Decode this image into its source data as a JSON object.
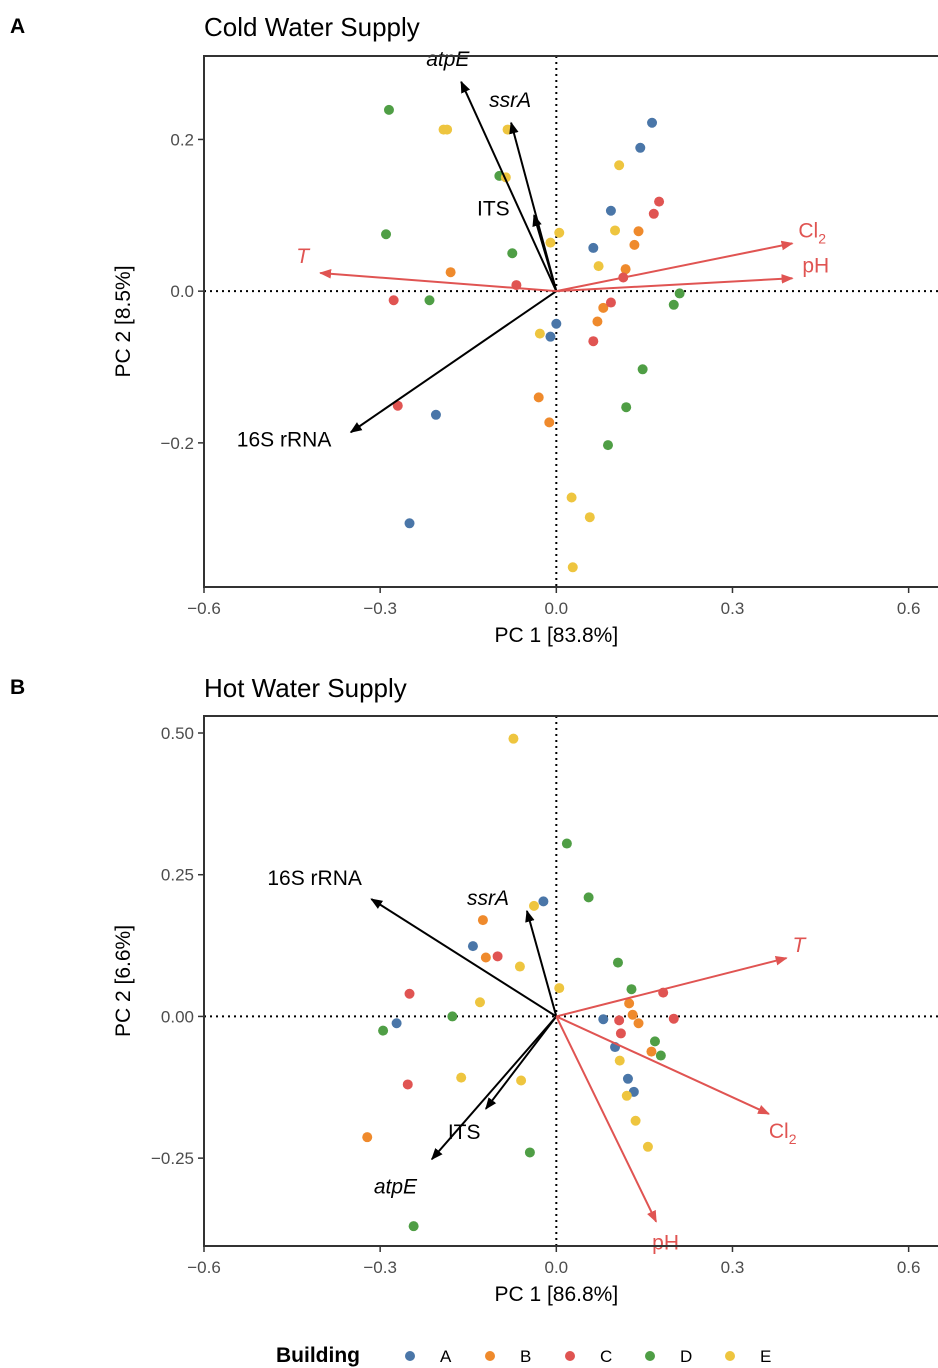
{
  "colors": {
    "A": "#4a76a8",
    "B": "#ef8a2c",
    "C": "#e05452",
    "D": "#4f9e45",
    "E": "#eec53f",
    "species_vector": "#000000",
    "env_vector": "#e05452"
  },
  "legend": {
    "title": "Building",
    "items": [
      {
        "key": "A",
        "label": "A"
      },
      {
        "key": "B",
        "label": "B"
      },
      {
        "key": "C",
        "label": "C"
      },
      {
        "key": "D",
        "label": "D"
      },
      {
        "key": "E",
        "label": "E"
      }
    ]
  },
  "chart_data": [
    {
      "type": "scatter",
      "panel": "A",
      "title": "Cold Water Supply",
      "xlabel": "PC 1 [83.8%]",
      "ylabel": "PC 2 [8.5%]",
      "xlim": [
        -0.6,
        0.65
      ],
      "ylim": [
        -0.39,
        0.31
      ],
      "xticks": [
        -0.6,
        -0.3,
        0.0,
        0.3,
        0.6
      ],
      "xtick_labels": [
        "−0.6",
        "−0.3",
        "0.0",
        "0.3",
        "0.6"
      ],
      "yticks": [
        -0.2,
        0.0,
        0.2
      ],
      "ytick_labels": [
        "−0.2",
        "0.0",
        "0.2"
      ],
      "reference_lines": {
        "x": 0,
        "y": 0,
        "style": "dotted"
      },
      "vectors": [
        {
          "label": "atpE",
          "italic": true,
          "kind": "species",
          "x": -0.162,
          "y": 0.276
        },
        {
          "label": "ssrA",
          "italic": true,
          "kind": "species",
          "x": -0.077,
          "y": 0.222
        },
        {
          "label": "ITS",
          "italic": false,
          "kind": "species",
          "x": -0.038,
          "y": 0.1
        },
        {
          "label": "16S rRNA",
          "italic": false,
          "kind": "species",
          "x": -0.35,
          "y": -0.186
        },
        {
          "label": "T",
          "italic": true,
          "kind": "environment",
          "x": -0.402,
          "y": 0.024
        },
        {
          "label": "Cl",
          "sub": "2",
          "italic": false,
          "kind": "environment",
          "x": 0.402,
          "y": 0.063
        },
        {
          "label": "pH",
          "italic": false,
          "kind": "environment",
          "x": 0.402,
          "y": 0.017
        }
      ],
      "series": [
        {
          "name": "A",
          "points": [
            [
              0.163,
              0.222
            ],
            [
              0.143,
              0.189
            ],
            [
              0.093,
              0.106
            ],
            [
              0.063,
              0.057
            ],
            [
              0.0,
              -0.043
            ],
            [
              -0.01,
              -0.06
            ],
            [
              -0.205,
              -0.163
            ],
            [
              -0.25,
              -0.306
            ]
          ]
        },
        {
          "name": "B",
          "points": [
            [
              0.14,
              0.079
            ],
            [
              0.133,
              0.061
            ],
            [
              0.118,
              0.029
            ],
            [
              0.08,
              -0.022
            ],
            [
              0.07,
              -0.04
            ],
            [
              -0.18,
              0.025
            ],
            [
              -0.03,
              -0.14
            ],
            [
              -0.012,
              -0.173
            ]
          ]
        },
        {
          "name": "C",
          "points": [
            [
              0.175,
              0.118
            ],
            [
              0.166,
              0.102
            ],
            [
              0.114,
              0.018
            ],
            [
              0.093,
              -0.015
            ],
            [
              0.063,
              -0.066
            ],
            [
              -0.27,
              -0.151
            ],
            [
              -0.277,
              -0.012
            ],
            [
              -0.068,
              0.008
            ]
          ]
        },
        {
          "name": "D",
          "points": [
            [
              -0.285,
              0.239
            ],
            [
              -0.097,
              0.152
            ],
            [
              -0.29,
              0.075
            ],
            [
              -0.075,
              0.05
            ],
            [
              -0.216,
              -0.012
            ],
            [
              0.21,
              -0.003
            ],
            [
              0.2,
              -0.018
            ],
            [
              0.147,
              -0.103
            ],
            [
              0.119,
              -0.153
            ],
            [
              0.088,
              -0.203
            ]
          ]
        },
        {
          "name": "E",
          "points": [
            [
              -0.192,
              0.213
            ],
            [
              -0.186,
              0.213
            ],
            [
              -0.083,
              0.213
            ],
            [
              -0.086,
              0.15
            ],
            [
              0.107,
              0.166
            ],
            [
              0.1,
              0.08
            ],
            [
              0.072,
              0.033
            ],
            [
              0.005,
              0.077
            ],
            [
              -0.01,
              0.064
            ],
            [
              -0.028,
              -0.056
            ],
            [
              0.026,
              -0.272
            ],
            [
              0.057,
              -0.298
            ],
            [
              0.028,
              -0.364
            ]
          ]
        }
      ]
    },
    {
      "type": "scatter",
      "panel": "B",
      "title": "Hot Water Supply",
      "xlabel": "PC 1 [86.8%]",
      "ylabel": "PC 2 [6.6%]",
      "xlim": [
        -0.6,
        0.65
      ],
      "ylim": [
        -0.405,
        0.53
      ],
      "xticks": [
        -0.6,
        -0.3,
        0.0,
        0.3,
        0.6
      ],
      "xtick_labels": [
        "−0.6",
        "−0.3",
        "0.0",
        "0.3",
        "0.6"
      ],
      "yticks": [
        -0.25,
        0.0,
        0.25,
        0.5
      ],
      "ytick_labels": [
        "−0.25",
        "0.00",
        "0.25",
        "0.50"
      ],
      "reference_lines": {
        "x": 0,
        "y": 0,
        "style": "dotted"
      },
      "vectors": [
        {
          "label": "16S rRNA",
          "italic": false,
          "kind": "species",
          "x": -0.315,
          "y": 0.207
        },
        {
          "label": "ssrA",
          "italic": true,
          "kind": "species",
          "x": -0.05,
          "y": 0.186
        },
        {
          "label": "ITS",
          "italic": false,
          "kind": "species",
          "x": -0.12,
          "y": -0.163
        },
        {
          "label": "atpE",
          "italic": true,
          "kind": "species",
          "x": -0.212,
          "y": -0.252
        },
        {
          "label": "T",
          "italic": true,
          "kind": "environment",
          "x": 0.392,
          "y": 0.103
        },
        {
          "label": "Cl",
          "sub": "2",
          "italic": false,
          "kind": "environment",
          "x": 0.362,
          "y": -0.172
        },
        {
          "label": "pH",
          "italic": false,
          "kind": "environment",
          "x": 0.17,
          "y": -0.362
        }
      ],
      "series": [
        {
          "name": "A",
          "points": [
            [
              -0.022,
              0.203
            ],
            [
              -0.142,
              0.124
            ],
            [
              -0.272,
              -0.012
            ],
            [
              0.08,
              -0.005
            ],
            [
              0.1,
              -0.054
            ],
            [
              0.122,
              -0.11
            ],
            [
              0.132,
              -0.133
            ]
          ]
        },
        {
          "name": "B",
          "points": [
            [
              -0.125,
              0.17
            ],
            [
              -0.12,
              0.104
            ],
            [
              0.124,
              0.023
            ],
            [
              0.13,
              0.003
            ],
            [
              0.14,
              -0.012
            ],
            [
              0.162,
              -0.062
            ],
            [
              -0.322,
              -0.213
            ]
          ]
        },
        {
          "name": "C",
          "points": [
            [
              -0.1,
              0.106
            ],
            [
              -0.25,
              0.04
            ],
            [
              0.182,
              0.042
            ],
            [
              0.2,
              -0.004
            ],
            [
              0.107,
              -0.007
            ],
            [
              0.11,
              -0.03
            ],
            [
              -0.253,
              -0.12
            ]
          ]
        },
        {
          "name": "D",
          "points": [
            [
              0.018,
              0.305
            ],
            [
              0.055,
              0.21
            ],
            [
              0.105,
              0.095
            ],
            [
              0.128,
              0.048
            ],
            [
              -0.177,
              0.0
            ],
            [
              -0.295,
              -0.025
            ],
            [
              0.168,
              -0.044
            ],
            [
              0.178,
              -0.069
            ],
            [
              -0.045,
              -0.24
            ],
            [
              -0.243,
              -0.37
            ]
          ]
        },
        {
          "name": "E",
          "points": [
            [
              -0.073,
              0.49
            ],
            [
              -0.038,
              0.195
            ],
            [
              -0.062,
              0.088
            ],
            [
              -0.13,
              0.025
            ],
            [
              0.005,
              0.05
            ],
            [
              -0.162,
              -0.108
            ],
            [
              -0.06,
              -0.113
            ],
            [
              0.108,
              -0.078
            ],
            [
              0.12,
              -0.14
            ],
            [
              0.135,
              -0.184
            ],
            [
              0.156,
              -0.23
            ]
          ]
        }
      ]
    }
  ]
}
